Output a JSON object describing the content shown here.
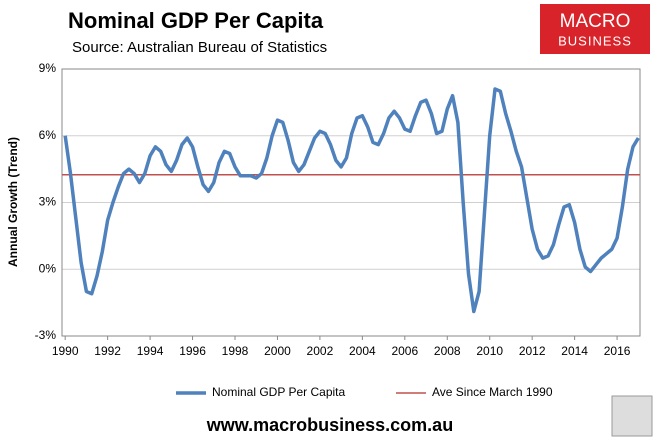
{
  "chart_data": {
    "type": "line",
    "title": "Nominal GDP Per Capita",
    "subtitle": "Source: Australian Bureau of Statistics",
    "ylabel": "Annual Growth (Trend)",
    "logo": [
      "MACRO",
      "BUSINESS"
    ],
    "footer": "www.macrobusiness.com.au",
    "x": [
      1990,
      1990.25,
      1990.5,
      1990.75,
      1991,
      1991.25,
      1991.5,
      1991.75,
      1992,
      1992.25,
      1992.5,
      1992.75,
      1993,
      1993.25,
      1993.5,
      1993.75,
      1994,
      1994.25,
      1994.5,
      1994.75,
      1995,
      1995.25,
      1995.5,
      1995.75,
      1996,
      1996.25,
      1996.5,
      1996.75,
      1997,
      1997.25,
      1997.5,
      1997.75,
      1998,
      1998.25,
      1998.5,
      1998.75,
      1999,
      1999.25,
      1999.5,
      1999.75,
      2000,
      2000.25,
      2000.5,
      2000.75,
      2001,
      2001.25,
      2001.5,
      2001.75,
      2002,
      2002.25,
      2002.5,
      2002.75,
      2003,
      2003.25,
      2003.5,
      2003.75,
      2004,
      2004.25,
      2004.5,
      2004.75,
      2005,
      2005.25,
      2005.5,
      2005.75,
      2006,
      2006.25,
      2006.5,
      2006.75,
      2007,
      2007.25,
      2007.5,
      2007.75,
      2008,
      2008.25,
      2008.5,
      2008.75,
      2009,
      2009.25,
      2009.5,
      2009.75,
      2010,
      2010.25,
      2010.5,
      2010.75,
      2011,
      2011.25,
      2011.5,
      2011.75,
      2012,
      2012.25,
      2012.5,
      2012.75,
      2013,
      2013.25,
      2013.5,
      2013.75,
      2014,
      2014.25,
      2014.5,
      2014.75,
      2015,
      2015.25,
      2015.5,
      2015.75,
      2016,
      2016.25,
      2016.5,
      2016.75,
      2017
    ],
    "series": [
      {
        "name": "Nominal GDP Per Capita",
        "color": "#4f81bd",
        "values": [
          6.0,
          4.3,
          2.3,
          0.3,
          -1.0,
          -1.1,
          -0.3,
          0.8,
          2.2,
          3.0,
          3.7,
          4.3,
          4.5,
          4.3,
          3.9,
          4.3,
          5.1,
          5.5,
          5.3,
          4.7,
          4.4,
          4.9,
          5.6,
          5.9,
          5.5,
          4.6,
          3.8,
          3.5,
          3.9,
          4.8,
          5.3,
          5.2,
          4.6,
          4.2,
          4.2,
          4.2,
          4.1,
          4.3,
          5.0,
          6.0,
          6.7,
          6.6,
          5.8,
          4.8,
          4.4,
          4.7,
          5.3,
          5.9,
          6.2,
          6.1,
          5.6,
          4.9,
          4.6,
          5.0,
          6.1,
          6.8,
          6.9,
          6.4,
          5.7,
          5.6,
          6.1,
          6.8,
          7.1,
          6.8,
          6.3,
          6.2,
          6.9,
          7.5,
          7.6,
          7.0,
          6.1,
          6.2,
          7.2,
          7.8,
          6.6,
          3.0,
          -0.2,
          -1.9,
          -1.0,
          2.5,
          6.0,
          8.1,
          8.0,
          7.0,
          6.2,
          5.3,
          4.6,
          3.2,
          1.8,
          0.9,
          0.5,
          0.6,
          1.1,
          2.0,
          2.8,
          2.9,
          2.1,
          0.9,
          0.1,
          -0.1,
          0.2,
          0.5,
          0.7,
          0.9,
          1.4,
          2.8,
          4.5,
          5.5,
          5.9
        ]
      }
    ],
    "average": {
      "name": "Ave Since March 1990",
      "value": 4.25,
      "color": "#c0504d"
    },
    "xlim": [
      1989.85,
      2017.08
    ],
    "xticks": [
      1990,
      1992,
      1994,
      1996,
      1998,
      2000,
      2002,
      2004,
      2006,
      2008,
      2010,
      2012,
      2014,
      2016
    ],
    "ylim": [
      -3,
      9
    ],
    "yticks": [
      {
        "value": -3,
        "label": "-3%"
      },
      {
        "value": 0,
        "label": "0%"
      },
      {
        "value": 3,
        "label": "3%"
      },
      {
        "value": 6,
        "label": "6%"
      },
      {
        "value": 9,
        "label": "9%"
      }
    ],
    "grid": true
  }
}
